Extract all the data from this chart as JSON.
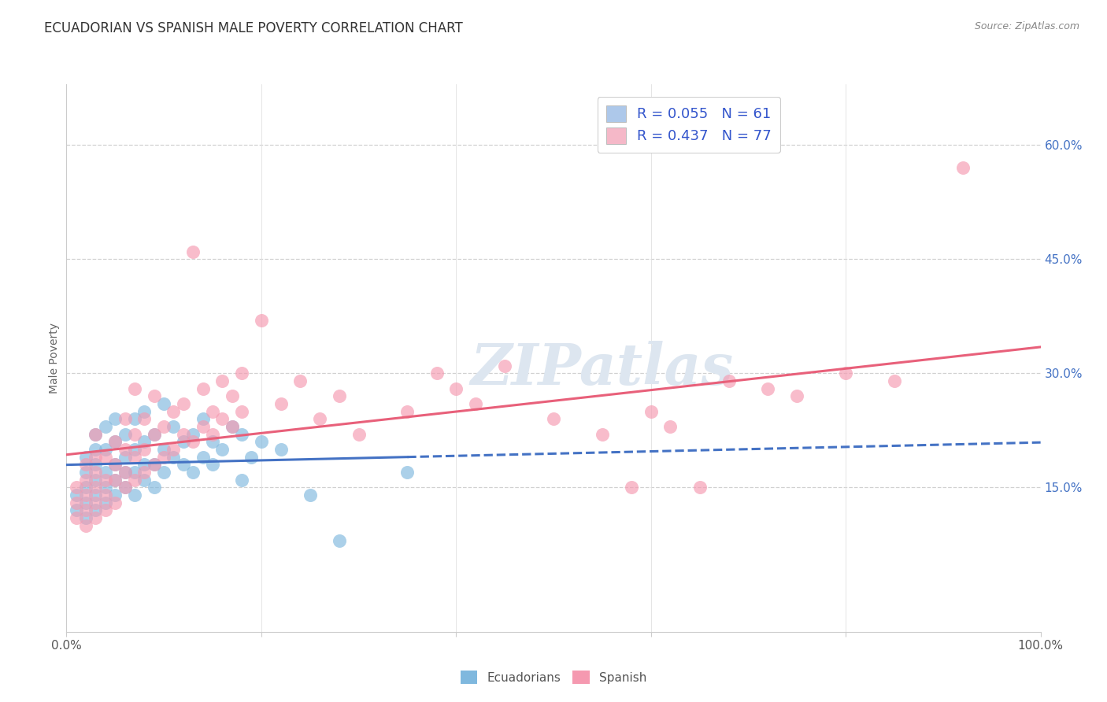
{
  "title": "ECUADORIAN VS SPANISH MALE POVERTY CORRELATION CHART",
  "source_text": "Source: ZipAtlas.com",
  "ylabel": "Male Poverty",
  "xlim": [
    0.0,
    1.0
  ],
  "ylim": [
    -0.04,
    0.68
  ],
  "x_ticks": [
    0.0,
    0.2,
    0.4,
    0.6,
    0.8,
    1.0
  ],
  "x_tick_labels": [
    "0.0%",
    "",
    "",
    "",
    "",
    "100.0%"
  ],
  "y_ticks": [
    0.15,
    0.3,
    0.45,
    0.6
  ],
  "y_tick_labels": [
    "15.0%",
    "30.0%",
    "45.0%",
    "60.0%"
  ],
  "legend_entry_1": "R = 0.055   N = 61",
  "legend_entry_2": "R = 0.437   N = 77",
  "legend_color_1": "#adc8ea",
  "legend_color_2": "#f5b8c8",
  "ecuadorian_color": "#7fb8de",
  "spanish_color": "#f599b0",
  "ecuadorian_line_color": "#4472c4",
  "spanish_line_color": "#e8607a",
  "background_color": "#ffffff",
  "grid_color": "#cccccc",
  "watermark_text": "ZIPatlas",
  "ecuadorian_scatter": [
    [
      0.01,
      0.12
    ],
    [
      0.01,
      0.14
    ],
    [
      0.02,
      0.11
    ],
    [
      0.02,
      0.13
    ],
    [
      0.02,
      0.15
    ],
    [
      0.02,
      0.17
    ],
    [
      0.02,
      0.19
    ],
    [
      0.03,
      0.12
    ],
    [
      0.03,
      0.14
    ],
    [
      0.03,
      0.16
    ],
    [
      0.03,
      0.18
    ],
    [
      0.03,
      0.2
    ],
    [
      0.03,
      0.22
    ],
    [
      0.04,
      0.13
    ],
    [
      0.04,
      0.15
    ],
    [
      0.04,
      0.17
    ],
    [
      0.04,
      0.2
    ],
    [
      0.04,
      0.23
    ],
    [
      0.05,
      0.14
    ],
    [
      0.05,
      0.16
    ],
    [
      0.05,
      0.18
    ],
    [
      0.05,
      0.21
    ],
    [
      0.05,
      0.24
    ],
    [
      0.06,
      0.15
    ],
    [
      0.06,
      0.17
    ],
    [
      0.06,
      0.19
    ],
    [
      0.06,
      0.22
    ],
    [
      0.07,
      0.14
    ],
    [
      0.07,
      0.17
    ],
    [
      0.07,
      0.2
    ],
    [
      0.07,
      0.24
    ],
    [
      0.08,
      0.16
    ],
    [
      0.08,
      0.18
    ],
    [
      0.08,
      0.21
    ],
    [
      0.08,
      0.25
    ],
    [
      0.09,
      0.15
    ],
    [
      0.09,
      0.18
    ],
    [
      0.09,
      0.22
    ],
    [
      0.1,
      0.17
    ],
    [
      0.1,
      0.2
    ],
    [
      0.1,
      0.26
    ],
    [
      0.11,
      0.19
    ],
    [
      0.11,
      0.23
    ],
    [
      0.12,
      0.18
    ],
    [
      0.12,
      0.21
    ],
    [
      0.13,
      0.17
    ],
    [
      0.13,
      0.22
    ],
    [
      0.14,
      0.19
    ],
    [
      0.14,
      0.24
    ],
    [
      0.15,
      0.18
    ],
    [
      0.15,
      0.21
    ],
    [
      0.16,
      0.2
    ],
    [
      0.17,
      0.23
    ],
    [
      0.18,
      0.22
    ],
    [
      0.18,
      0.16
    ],
    [
      0.19,
      0.19
    ],
    [
      0.2,
      0.21
    ],
    [
      0.22,
      0.2
    ],
    [
      0.25,
      0.14
    ],
    [
      0.28,
      0.08
    ],
    [
      0.35,
      0.17
    ]
  ],
  "spanish_scatter": [
    [
      0.01,
      0.11
    ],
    [
      0.01,
      0.13
    ],
    [
      0.01,
      0.15
    ],
    [
      0.02,
      0.1
    ],
    [
      0.02,
      0.12
    ],
    [
      0.02,
      0.14
    ],
    [
      0.02,
      0.16
    ],
    [
      0.02,
      0.18
    ],
    [
      0.03,
      0.11
    ],
    [
      0.03,
      0.13
    ],
    [
      0.03,
      0.15
    ],
    [
      0.03,
      0.17
    ],
    [
      0.03,
      0.19
    ],
    [
      0.03,
      0.22
    ],
    [
      0.04,
      0.12
    ],
    [
      0.04,
      0.14
    ],
    [
      0.04,
      0.16
    ],
    [
      0.04,
      0.19
    ],
    [
      0.05,
      0.13
    ],
    [
      0.05,
      0.16
    ],
    [
      0.05,
      0.18
    ],
    [
      0.05,
      0.21
    ],
    [
      0.06,
      0.15
    ],
    [
      0.06,
      0.17
    ],
    [
      0.06,
      0.2
    ],
    [
      0.06,
      0.24
    ],
    [
      0.07,
      0.16
    ],
    [
      0.07,
      0.19
    ],
    [
      0.07,
      0.22
    ],
    [
      0.07,
      0.28
    ],
    [
      0.08,
      0.17
    ],
    [
      0.08,
      0.2
    ],
    [
      0.08,
      0.24
    ],
    [
      0.09,
      0.18
    ],
    [
      0.09,
      0.22
    ],
    [
      0.09,
      0.27
    ],
    [
      0.1,
      0.19
    ],
    [
      0.1,
      0.23
    ],
    [
      0.11,
      0.2
    ],
    [
      0.11,
      0.25
    ],
    [
      0.12,
      0.22
    ],
    [
      0.12,
      0.26
    ],
    [
      0.13,
      0.21
    ],
    [
      0.13,
      0.46
    ],
    [
      0.14,
      0.23
    ],
    [
      0.14,
      0.28
    ],
    [
      0.15,
      0.22
    ],
    [
      0.15,
      0.25
    ],
    [
      0.16,
      0.24
    ],
    [
      0.16,
      0.29
    ],
    [
      0.17,
      0.23
    ],
    [
      0.17,
      0.27
    ],
    [
      0.18,
      0.25
    ],
    [
      0.18,
      0.3
    ],
    [
      0.2,
      0.37
    ],
    [
      0.22,
      0.26
    ],
    [
      0.24,
      0.29
    ],
    [
      0.26,
      0.24
    ],
    [
      0.28,
      0.27
    ],
    [
      0.3,
      0.22
    ],
    [
      0.35,
      0.25
    ],
    [
      0.38,
      0.3
    ],
    [
      0.4,
      0.28
    ],
    [
      0.42,
      0.26
    ],
    [
      0.45,
      0.31
    ],
    [
      0.5,
      0.24
    ],
    [
      0.55,
      0.22
    ],
    [
      0.58,
      0.15
    ],
    [
      0.6,
      0.25
    ],
    [
      0.62,
      0.23
    ],
    [
      0.65,
      0.15
    ],
    [
      0.68,
      0.29
    ],
    [
      0.72,
      0.28
    ],
    [
      0.75,
      0.27
    ],
    [
      0.8,
      0.3
    ],
    [
      0.85,
      0.29
    ],
    [
      0.92,
      0.57
    ]
  ]
}
